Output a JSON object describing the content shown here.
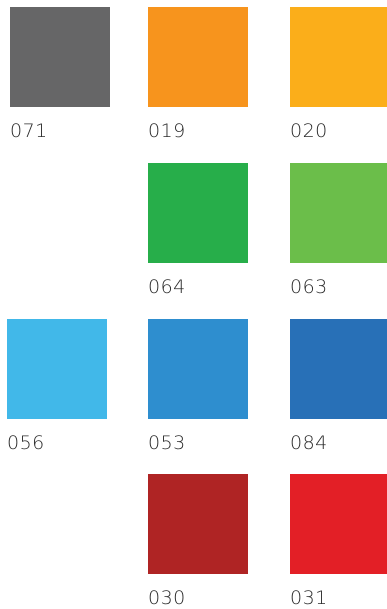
{
  "swatches": [
    {
      "code": "071",
      "color": "#666667"
    },
    {
      "code": "019",
      "color": "#F7941D"
    },
    {
      "code": "020",
      "color": "#FBAE1A"
    },
    {
      "code": "064",
      "color": "#27AE4A"
    },
    {
      "code": "063",
      "color": "#6BBE4A"
    },
    {
      "code": "056",
      "color": "#41B8E9"
    },
    {
      "code": "053",
      "color": "#2E8ECF"
    },
    {
      "code": "084",
      "color": "#2870B7"
    },
    {
      "code": "030",
      "color": "#AF2424"
    },
    {
      "code": "031",
      "color": "#E31F26"
    }
  ]
}
